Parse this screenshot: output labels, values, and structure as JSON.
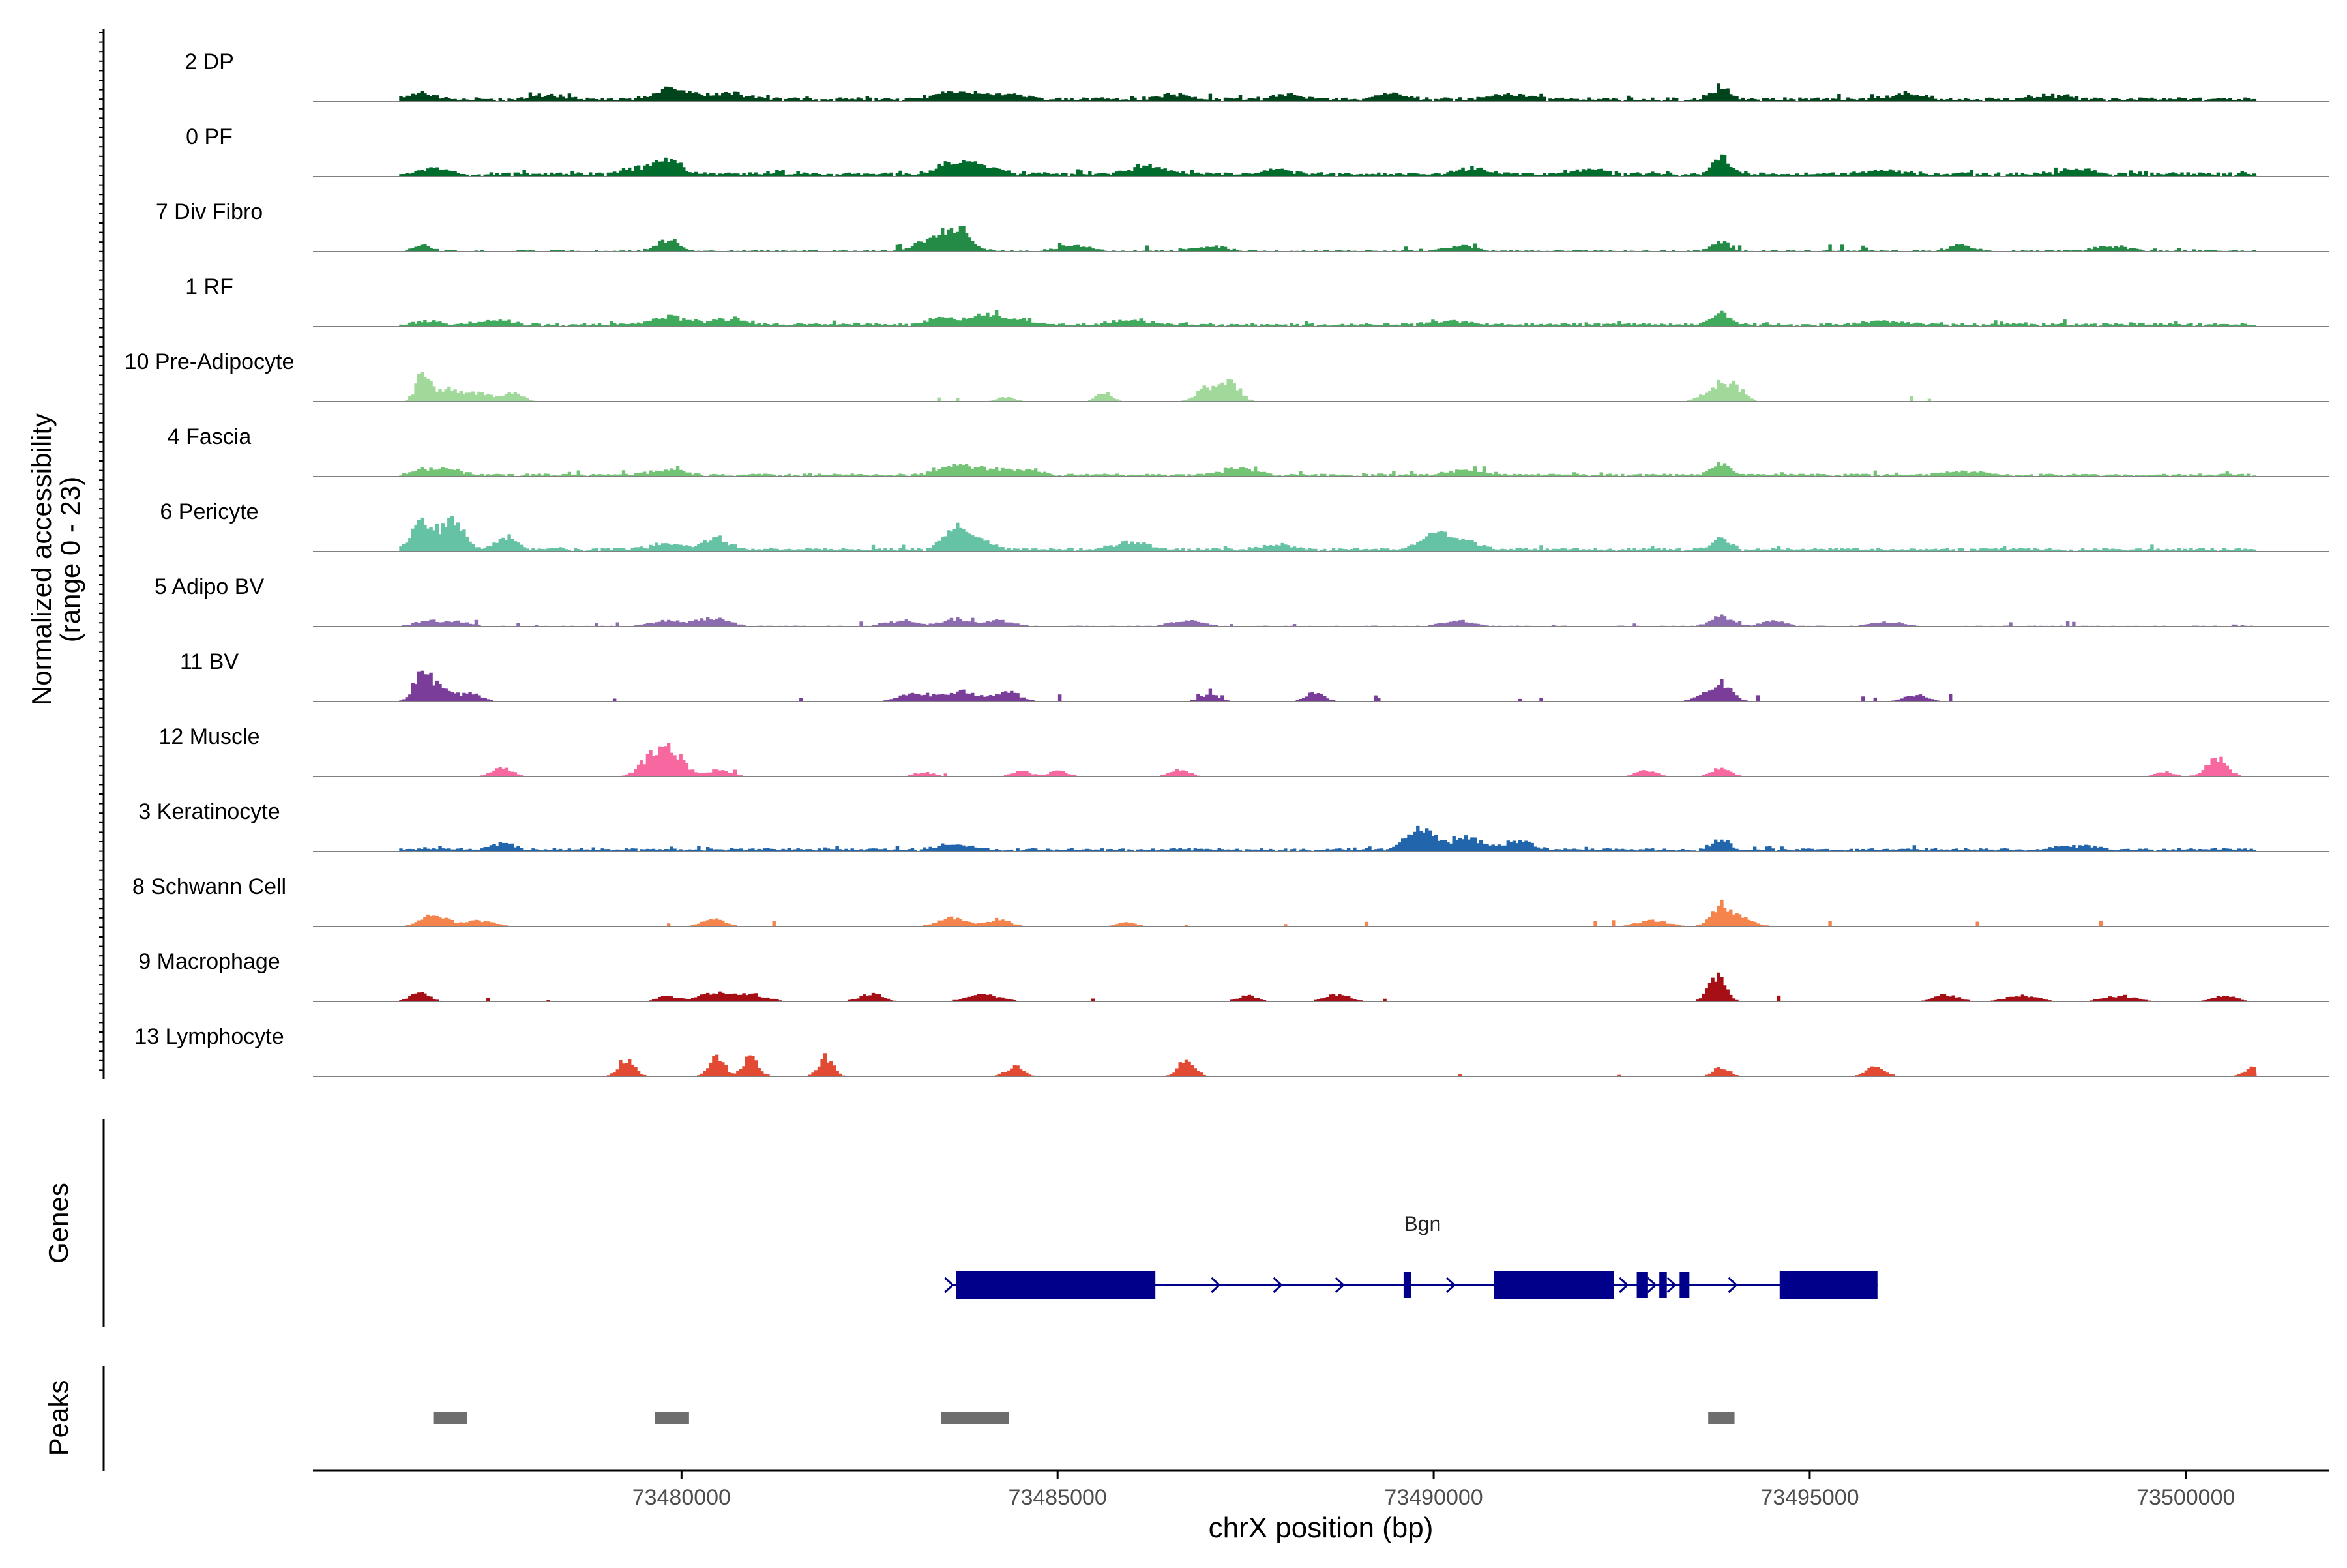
{
  "chart_data": {
    "type": "area",
    "title": "",
    "ylabel_line1": "Normalized accessibility",
    "ylabel_line2": "(range 0 - 23)",
    "y_range": [
      0,
      23
    ],
    "xlabel": "chrX position (bp)",
    "x_range": [
      73475100,
      73501900
    ],
    "x_ticks": [
      73480000,
      73485000,
      73490000,
      73495000,
      73500000
    ],
    "x_tick_labels": [
      "73480000",
      "73485000",
      "73490000",
      "73495000",
      "73500000"
    ],
    "signal_span": [
      73476250,
      73500900
    ],
    "tracks": [
      {
        "name": "2 DP",
        "color": "#00441b",
        "baseline": 1.2,
        "noise": 1.6,
        "density": 0.95,
        "peaks": [
          [
            73476500,
            2.2,
            150
          ],
          [
            73478200,
            1.5,
            200
          ],
          [
            73479850,
            3.8,
            220
          ],
          [
            73480600,
            2.5,
            250
          ],
          [
            73483600,
            2.6,
            250
          ],
          [
            73484300,
            2.0,
            250
          ],
          [
            73486500,
            1.5,
            200
          ],
          [
            73488000,
            1.5,
            200
          ],
          [
            73489400,
            1.8,
            200
          ],
          [
            73491000,
            1.5,
            250
          ],
          [
            73493800,
            4.8,
            110
          ],
          [
            73496300,
            1.5,
            250
          ],
          [
            73498200,
            1.4,
            250
          ]
        ]
      },
      {
        "name": "0 PF",
        "color": "#006d2c",
        "baseline": 1.2,
        "noise": 1.6,
        "density": 0.95,
        "peaks": [
          [
            73476700,
            1.8,
            200
          ],
          [
            73479800,
            6.0,
            150
          ],
          [
            73479400,
            2.0,
            200
          ],
          [
            73483600,
            4.6,
            200
          ],
          [
            73484000,
            2.8,
            220
          ],
          [
            73486200,
            3.0,
            220
          ],
          [
            73487900,
            1.8,
            200
          ],
          [
            73490500,
            2.0,
            200
          ],
          [
            73492000,
            1.5,
            250
          ],
          [
            73493800,
            6.2,
            110
          ],
          [
            73496000,
            1.5,
            250
          ],
          [
            73498500,
            1.5,
            250
          ]
        ]
      },
      {
        "name": "7 Div Fibro",
        "color": "#238b45",
        "baseline": 0.5,
        "noise": 2.2,
        "density": 0.5,
        "peaks": [
          [
            73476550,
            2.0,
            100
          ],
          [
            73479800,
            4.2,
            140
          ],
          [
            73483650,
            7.8,
            170
          ],
          [
            73483300,
            3.5,
            200
          ],
          [
            73485200,
            1.8,
            220
          ],
          [
            73487000,
            1.6,
            220
          ],
          [
            73490300,
            1.8,
            200
          ],
          [
            73493800,
            3.5,
            110
          ],
          [
            73497000,
            2.2,
            150
          ],
          [
            73499000,
            1.8,
            200
          ]
        ]
      },
      {
        "name": "1 RF",
        "color": "#41ab5d",
        "baseline": 1.0,
        "noise": 1.4,
        "density": 0.95,
        "peaks": [
          [
            73476600,
            1.4,
            150
          ],
          [
            73477500,
            1.5,
            200
          ],
          [
            73479850,
            2.8,
            230
          ],
          [
            73480600,
            2.0,
            250
          ],
          [
            73483500,
            2.2,
            230
          ],
          [
            73484000,
            3.2,
            150
          ],
          [
            73484400,
            2.0,
            230
          ],
          [
            73486000,
            1.6,
            250
          ],
          [
            73490200,
            1.3,
            250
          ],
          [
            73493800,
            4.5,
            110
          ],
          [
            73496000,
            1.2,
            250
          ]
        ]
      },
      {
        "name": "10 Pre-Adipocyte",
        "color": "#a1d99b",
        "baseline": 0.0,
        "noise": 2.5,
        "density": 0.2,
        "peaks": [
          [
            73476550,
            10.5,
            90
          ],
          [
            73476900,
            4.5,
            150
          ],
          [
            73477300,
            3.0,
            150
          ],
          [
            73477750,
            3.5,
            120
          ],
          [
            73484300,
            1.5,
            120
          ],
          [
            73485600,
            3.2,
            100
          ],
          [
            73487000,
            5.2,
            150
          ],
          [
            73487300,
            5.8,
            120
          ],
          [
            73493750,
            5.8,
            160
          ],
          [
            73494000,
            4.0,
            120
          ]
        ]
      },
      {
        "name": "4 Fascia",
        "color": "#74c476",
        "baseline": 0.8,
        "noise": 1.6,
        "density": 0.9,
        "peaks": [
          [
            73476600,
            2.2,
            150
          ],
          [
            73476950,
            1.8,
            150
          ],
          [
            73479800,
            2.0,
            220
          ],
          [
            73483600,
            3.6,
            200
          ],
          [
            73484100,
            2.4,
            200
          ],
          [
            73484600,
            1.8,
            200
          ],
          [
            73487400,
            2.8,
            200
          ],
          [
            73490400,
            1.6,
            250
          ],
          [
            73493800,
            4.2,
            110
          ],
          [
            73497000,
            1.2,
            250
          ]
        ]
      },
      {
        "name": "6 Pericyte",
        "color": "#66c2a4",
        "baseline": 1.0,
        "noise": 1.4,
        "density": 0.95,
        "peaks": [
          [
            73476550,
            11.0,
            140
          ],
          [
            73476950,
            10.2,
            140
          ],
          [
            73477650,
            4.0,
            130
          ],
          [
            73479800,
            2.0,
            250
          ],
          [
            73480450,
            4.2,
            150
          ],
          [
            73483600,
            6.8,
            140
          ],
          [
            73483900,
            3.2,
            200
          ],
          [
            73486000,
            2.5,
            220
          ],
          [
            73487900,
            2.0,
            200
          ],
          [
            73490000,
            5.5,
            200
          ],
          [
            73490350,
            3.0,
            200
          ],
          [
            73493800,
            4.5,
            110
          ]
        ]
      },
      {
        "name": "5 Adipo BV",
        "color": "#8c6bb1",
        "baseline": 0.2,
        "noise": 1.8,
        "density": 0.55,
        "peaks": [
          [
            73476600,
            2.2,
            150
          ],
          [
            73477000,
            1.8,
            150
          ],
          [
            73479800,
            2.0,
            220
          ],
          [
            73480400,
            3.0,
            200
          ],
          [
            73482900,
            2.0,
            200
          ],
          [
            73483600,
            2.6,
            170
          ],
          [
            73484200,
            2.0,
            200
          ],
          [
            73486700,
            2.0,
            200
          ],
          [
            73490300,
            2.0,
            200
          ],
          [
            73493800,
            3.8,
            140
          ],
          [
            73494500,
            2.0,
            150
          ],
          [
            73496000,
            1.5,
            200
          ]
        ]
      },
      {
        "name": "11 BV",
        "color": "#7a3d9a",
        "baseline": 0.0,
        "noise": 2.6,
        "density": 0.28,
        "peaks": [
          [
            73476550,
            13.0,
            110
          ],
          [
            73476850,
            4.5,
            120
          ],
          [
            73477200,
            3.0,
            120
          ],
          [
            73483100,
            3.0,
            200
          ],
          [
            73483700,
            3.5,
            200
          ],
          [
            73484300,
            3.8,
            160
          ],
          [
            73487000,
            2.5,
            120
          ],
          [
            73488400,
            3.0,
            120
          ],
          [
            73493650,
            3.0,
            150
          ],
          [
            73493850,
            4.2,
            120
          ],
          [
            73496400,
            2.2,
            150
          ]
        ]
      },
      {
        "name": "12 Muscle",
        "color": "#f768a1",
        "baseline": 0.0,
        "noise": 2.4,
        "density": 0.18,
        "peaks": [
          [
            73477600,
            3.5,
            120
          ],
          [
            73479800,
            10.5,
            190
          ],
          [
            73479500,
            3.0,
            130
          ],
          [
            73480500,
            2.5,
            130
          ],
          [
            73483200,
            1.5,
            120
          ],
          [
            73484500,
            2.0,
            120
          ],
          [
            73485000,
            2.0,
            120
          ],
          [
            73486600,
            2.5,
            120
          ],
          [
            73492800,
            2.4,
            120
          ],
          [
            73493800,
            2.8,
            120
          ],
          [
            73500400,
            6.2,
            130
          ],
          [
            73499700,
            1.5,
            120
          ]
        ]
      },
      {
        "name": "3 Keratinocyte",
        "color": "#2166ac",
        "baseline": 0.9,
        "noise": 1.2,
        "density": 0.95,
        "peaks": [
          [
            73477600,
            2.0,
            150
          ],
          [
            73483600,
            2.0,
            220
          ],
          [
            73489800,
            7.8,
            170
          ],
          [
            73490400,
            4.5,
            200
          ],
          [
            73491100,
            3.5,
            170
          ],
          [
            73493800,
            3.8,
            110
          ],
          [
            73498500,
            1.6,
            250
          ]
        ]
      },
      {
        "name": "8 Schwann Cell",
        "color": "#f4844c",
        "baseline": 0.0,
        "noise": 2.2,
        "density": 0.45,
        "peaks": [
          [
            73476700,
            4.0,
            170
          ],
          [
            73477300,
            2.0,
            180
          ],
          [
            73480400,
            2.5,
            150
          ],
          [
            73483600,
            3.2,
            180
          ],
          [
            73484200,
            2.5,
            150
          ],
          [
            73485900,
            1.5,
            120
          ],
          [
            73492900,
            2.0,
            200
          ],
          [
            73493800,
            7.5,
            130
          ],
          [
            73494100,
            2.5,
            150
          ]
        ]
      },
      {
        "name": "9 Macrophage",
        "color": "#a50f15",
        "baseline": 0.0,
        "noise": 2.2,
        "density": 0.3,
        "peaks": [
          [
            73476500,
            3.0,
            120
          ],
          [
            73479800,
            2.0,
            120
          ],
          [
            73480400,
            3.0,
            200
          ],
          [
            73480900,
            2.5,
            200
          ],
          [
            73482500,
            2.5,
            150
          ],
          [
            73484000,
            2.5,
            200
          ],
          [
            73487500,
            2.0,
            120
          ],
          [
            73488700,
            2.5,
            150
          ],
          [
            73493750,
            9.5,
            110
          ],
          [
            73496800,
            2.5,
            150
          ],
          [
            73497800,
            2.0,
            200
          ],
          [
            73499100,
            2.0,
            200
          ],
          [
            73500500,
            2.0,
            150
          ]
        ]
      },
      {
        "name": "13 Lymphocyte",
        "color": "#e34a33",
        "baseline": 0.0,
        "noise": 2.6,
        "density": 0.07,
        "peaks": [
          [
            73479250,
            6.5,
            100
          ],
          [
            73480450,
            7.0,
            100
          ],
          [
            73480900,
            7.0,
            100
          ],
          [
            73481900,
            7.0,
            90
          ],
          [
            73484400,
            3.5,
            110
          ],
          [
            73486700,
            6.5,
            100
          ],
          [
            73493800,
            3.5,
            100
          ],
          [
            73495850,
            3.5,
            120
          ],
          [
            73500850,
            3.0,
            90
          ]
        ]
      }
    ],
    "genes_label": "Genes",
    "gene": {
      "name": "Bgn",
      "color": "#00008b",
      "start": 73483600,
      "end": 73495900,
      "exons": [
        [
          73483650,
          73486300
        ],
        [
          73489600,
          73489700
        ],
        [
          73490800,
          73492400
        ],
        [
          73492700,
          73492850
        ],
        [
          73493000,
          73493100
        ],
        [
          73493270,
          73493400
        ],
        [
          73494600,
          73495900
        ]
      ]
    },
    "peaks_label": "Peaks",
    "peaks_color": "#6e6e6e",
    "peak_regions": [
      [
        73476700,
        73477150
      ],
      [
        73479650,
        73480100
      ],
      [
        73483450,
        73484350
      ],
      [
        73493650,
        73494000
      ]
    ]
  }
}
